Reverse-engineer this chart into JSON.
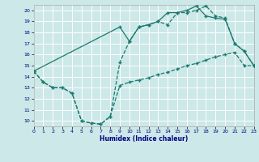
{
  "xlabel": "Humidex (Indice chaleur)",
  "bg_color": "#cce8e8",
  "grid_color": "#ffffff",
  "line_color": "#1a7a6e",
  "xlim": [
    0,
    23
  ],
  "ylim": [
    9.5,
    20.5
  ],
  "xticks": [
    0,
    1,
    2,
    3,
    4,
    5,
    6,
    7,
    8,
    9,
    10,
    11,
    12,
    13,
    14,
    15,
    16,
    17,
    18,
    19,
    20,
    21,
    22,
    23
  ],
  "yticks": [
    10,
    11,
    12,
    13,
    14,
    15,
    16,
    17,
    18,
    19,
    20
  ],
  "curve1_x": [
    0,
    1,
    2,
    3,
    4,
    5,
    6,
    7,
    8,
    9,
    10,
    11,
    12,
    13,
    14,
    15,
    16,
    17,
    18,
    19,
    20,
    21,
    22,
    23
  ],
  "curve1_y": [
    14.5,
    13.5,
    13.0,
    13.0,
    12.5,
    10.0,
    9.8,
    9.7,
    10.4,
    15.3,
    17.2,
    18.5,
    18.7,
    19.0,
    18.7,
    19.8,
    19.8,
    20.0,
    20.4,
    19.5,
    19.3,
    17.0,
    16.3,
    15.0
  ],
  "curve2_x": [
    0,
    1,
    2,
    3,
    4,
    5,
    6,
    7,
    8,
    9,
    10,
    11,
    12,
    13,
    14,
    15,
    16,
    17,
    18,
    19,
    20,
    21,
    22,
    23
  ],
  "curve2_y": [
    14.5,
    13.5,
    13.0,
    13.0,
    12.5,
    10.0,
    9.8,
    9.7,
    10.4,
    13.2,
    13.5,
    13.7,
    13.9,
    14.2,
    14.4,
    14.7,
    15.0,
    15.2,
    15.5,
    15.8,
    16.0,
    16.2,
    15.0,
    15.0
  ],
  "curve3_x": [
    0,
    9,
    10,
    11,
    12,
    13,
    14,
    15,
    16,
    17,
    18,
    19,
    20,
    21,
    22,
    23
  ],
  "curve3_y": [
    14.5,
    18.5,
    17.2,
    18.5,
    18.7,
    19.0,
    19.8,
    19.8,
    20.0,
    20.4,
    19.5,
    19.3,
    19.2,
    17.0,
    16.3,
    15.0
  ]
}
